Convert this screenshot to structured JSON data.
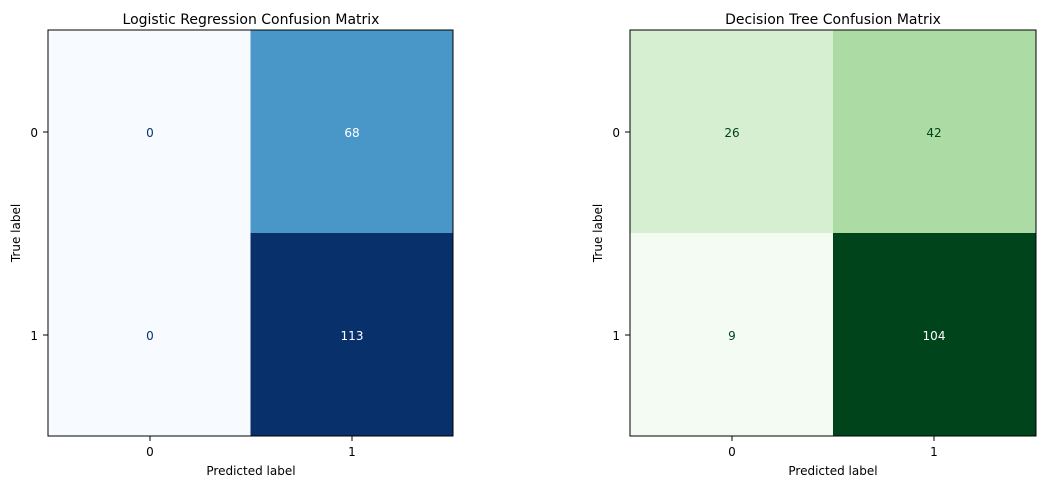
{
  "chart_data": [
    {
      "type": "heatmap",
      "title": "Logistic Regression Confusion Matrix",
      "xlabel": "Predicted label",
      "ylabel": "True label",
      "x_categories": [
        "0",
        "1"
      ],
      "y_categories": [
        "0",
        "1"
      ],
      "values": [
        [
          0,
          68
        ],
        [
          0,
          113
        ]
      ],
      "value_labels": [
        [
          "0",
          "68"
        ],
        [
          "0",
          "113"
        ]
      ],
      "colormap": "Blues",
      "colorbar": false,
      "grid": false,
      "cell_colors": [
        [
          "#f7fbff",
          "#4997c9"
        ],
        [
          "#f7fbff",
          "#08306b"
        ]
      ],
      "text_colors": [
        [
          "#08306b",
          "#ffffff"
        ],
        [
          "#08306b",
          "#ffffff"
        ]
      ]
    },
    {
      "type": "heatmap",
      "title": "Decision Tree Confusion Matrix",
      "xlabel": "Predicted label",
      "ylabel": "True label",
      "x_categories": [
        "0",
        "1"
      ],
      "y_categories": [
        "0",
        "1"
      ],
      "values": [
        [
          26,
          42
        ],
        [
          9,
          104
        ]
      ],
      "value_labels": [
        [
          "26",
          "42"
        ],
        [
          "9",
          "104"
        ]
      ],
      "colormap": "Greens",
      "colorbar": false,
      "grid": false,
      "cell_colors": [
        [
          "#d6efd0",
          "#acdca3"
        ],
        [
          "#f4fbf2",
          "#00441b"
        ]
      ],
      "text_colors": [
        [
          "#00441b",
          "#00441b"
        ],
        [
          "#00441b",
          "#ffffff"
        ]
      ]
    }
  ]
}
